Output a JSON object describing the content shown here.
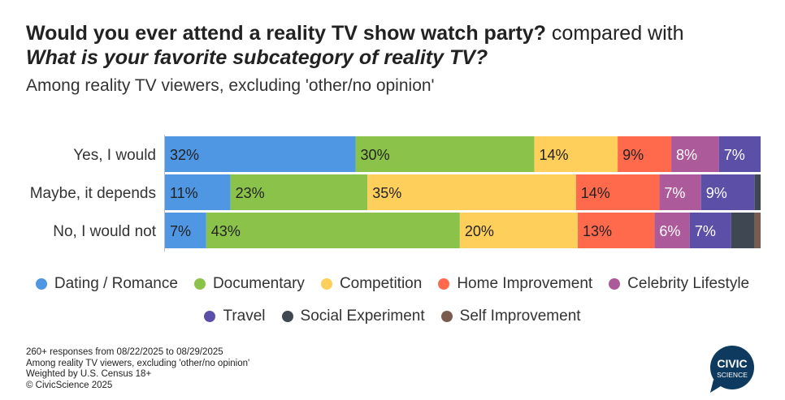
{
  "header": {
    "title_q1": "Would you ever attend a reality TV show watch party?",
    "title_compare": "compared with",
    "title_q2": "What is your favorite subcategory of reality TV?",
    "subtitle": "Among reality TV viewers, excluding 'other/no opinion'"
  },
  "chart_data": {
    "type": "bar",
    "orientation": "horizontal",
    "stacked": true,
    "normalized_percent": true,
    "categories": [
      "Yes, I would",
      "Maybe, it depends",
      "No, I would not"
    ],
    "series": [
      {
        "name": "Dating / Romance",
        "color": "#4f97e3",
        "values": [
          32,
          11,
          7
        ]
      },
      {
        "name": "Documentary",
        "color": "#8bc34a",
        "values": [
          30,
          23,
          43
        ]
      },
      {
        "name": "Competition",
        "color": "#ffcf5c",
        "values": [
          14,
          35,
          20
        ]
      },
      {
        "name": "Home Improvement",
        "color": "#ff6a4d",
        "values": [
          9,
          14,
          13
        ]
      },
      {
        "name": "Celebrity Lifestyle",
        "color": "#ad5a9a",
        "values": [
          8,
          7,
          6
        ]
      },
      {
        "name": "Travel",
        "color": "#5b4fa8",
        "values": [
          7,
          9,
          7
        ]
      },
      {
        "name": "Social Experiment",
        "color": "#3f4752",
        "values": [
          0,
          1,
          4
        ]
      },
      {
        "name": "Self Improvement",
        "color": "#7a5c4f",
        "values": [
          0,
          0,
          1
        ]
      }
    ],
    "value_suffix": "%",
    "legend_position": "bottom"
  },
  "legend": {
    "row1": [
      "Dating / Romance",
      "Documentary",
      "Competition",
      "Home Improvement",
      "Celebrity Lifestyle"
    ],
    "row2": [
      "Travel",
      "Social Experiment",
      "Self Improvement"
    ]
  },
  "footer": {
    "lines": [
      "260+ responses from 08/22/2025 to 08/29/2025",
      "Among reality TV viewers, excluding 'other/no opinion'",
      "Weighted by U.S. Census 18+",
      "© CivicScience 2025"
    ]
  },
  "logo": {
    "line1": "CIVIC",
    "line2": "SCIENCE",
    "color": "#0f3a5f"
  }
}
